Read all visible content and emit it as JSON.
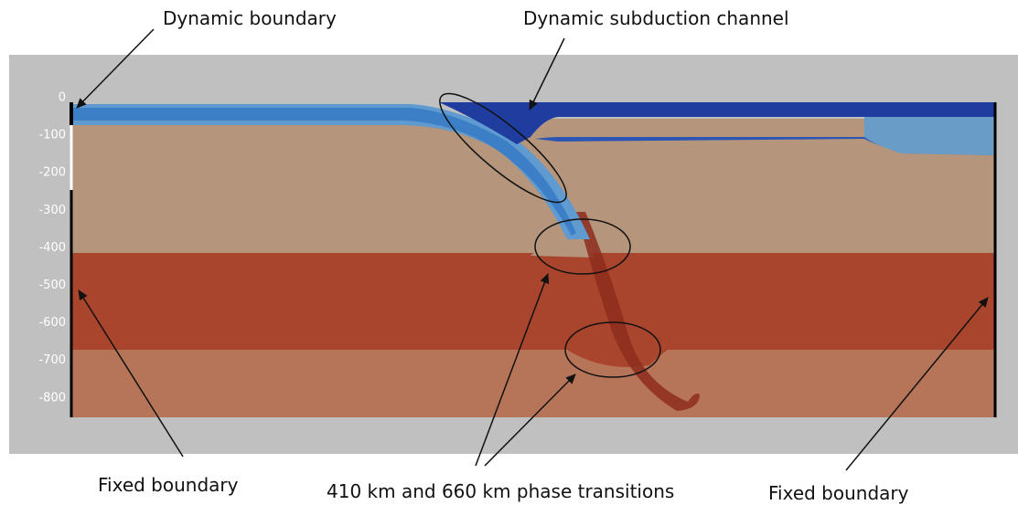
{
  "annotations": {
    "top_left": "Dynamic boundary",
    "top_right": "Dynamic subduction channel",
    "bottom_left": "Fixed boundary",
    "bottom_middle": "410 km and 660 km phase transitions",
    "bottom_right": "Fixed boundary"
  },
  "depth_labels": [
    "0",
    "-100",
    "-200",
    "-300",
    "-400",
    "-500",
    "-600",
    "-700",
    "-800"
  ]
}
